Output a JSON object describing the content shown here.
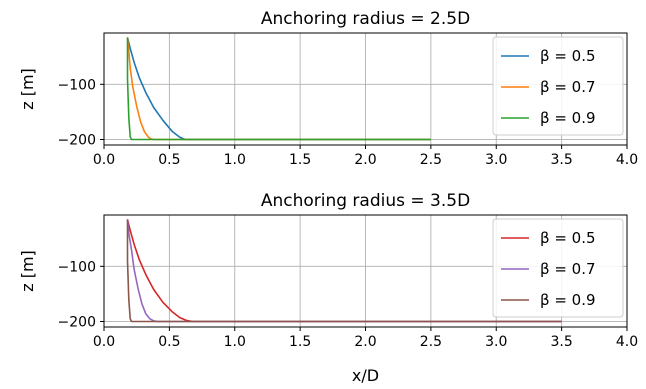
{
  "chart_data": [
    {
      "type": "line",
      "title": "Anchoring radius = 2.5D",
      "xlabel": "",
      "ylabel": "z [m]",
      "xlim": [
        0.0,
        4.0
      ],
      "ylim": [
        -210,
        -7
      ],
      "xticks": [
        "0.0",
        "0.5",
        "1.0",
        "1.5",
        "2.0",
        "2.5",
        "3.0",
        "3.5",
        "4.0"
      ],
      "yticks": [
        {
          "value": -100,
          "label": "−100"
        },
        {
          "value": -200,
          "label": "−200"
        }
      ],
      "grid": true,
      "legend_position": "upper right",
      "series": [
        {
          "name": "β = 0.5",
          "color": "#1f77b4",
          "x": [
            0.18,
            0.2,
            0.23,
            0.27,
            0.32,
            0.38,
            0.45,
            0.52,
            0.58,
            0.62,
            2.5
          ],
          "y": [
            -15,
            -35,
            -60,
            -88,
            -115,
            -142,
            -165,
            -185,
            -196,
            -200,
            -200
          ]
        },
        {
          "name": "β = 0.7",
          "color": "#ff7f0e",
          "x": [
            0.18,
            0.19,
            0.2,
            0.22,
            0.25,
            0.28,
            0.31,
            0.34,
            0.36,
            0.38,
            2.5
          ],
          "y": [
            -15,
            -40,
            -70,
            -105,
            -140,
            -168,
            -186,
            -196,
            -199,
            -200,
            -200
          ]
        },
        {
          "name": "β = 0.9",
          "color": "#2ca02c",
          "x": [
            0.18,
            0.18,
            0.19,
            0.2,
            0.21,
            2.5
          ],
          "y": [
            -15,
            -90,
            -160,
            -195,
            -200,
            -200
          ]
        }
      ]
    },
    {
      "type": "line",
      "title": "Anchoring radius = 3.5D",
      "xlabel": "x/D",
      "ylabel": "z [m]",
      "xlim": [
        0.0,
        4.0
      ],
      "ylim": [
        -210,
        -7
      ],
      "xticks": [
        "0.0",
        "0.5",
        "1.0",
        "1.5",
        "2.0",
        "2.5",
        "3.0",
        "3.5",
        "4.0"
      ],
      "yticks": [
        {
          "value": -100,
          "label": "−100"
        },
        {
          "value": -200,
          "label": "−200"
        }
      ],
      "grid": true,
      "legend_position": "upper right",
      "series": [
        {
          "name": "β = 0.5",
          "color": "#d62728",
          "x": [
            0.18,
            0.2,
            0.23,
            0.27,
            0.32,
            0.38,
            0.45,
            0.52,
            0.58,
            0.63,
            0.68,
            3.5
          ],
          "y": [
            -15,
            -35,
            -60,
            -88,
            -115,
            -142,
            -165,
            -182,
            -193,
            -198,
            -200,
            -200
          ]
        },
        {
          "name": "β = 0.7",
          "color": "#9467bd",
          "x": [
            0.18,
            0.19,
            0.21,
            0.23,
            0.26,
            0.29,
            0.32,
            0.35,
            0.38,
            0.41,
            3.5
          ],
          "y": [
            -15,
            -40,
            -70,
            -105,
            -140,
            -168,
            -186,
            -195,
            -199,
            -200,
            -200
          ]
        },
        {
          "name": "β = 0.9",
          "color": "#8c564b",
          "x": [
            0.18,
            0.18,
            0.19,
            0.2,
            0.21,
            3.5
          ],
          "y": [
            -15,
            -90,
            -160,
            -195,
            -200,
            -200
          ]
        }
      ]
    }
  ]
}
